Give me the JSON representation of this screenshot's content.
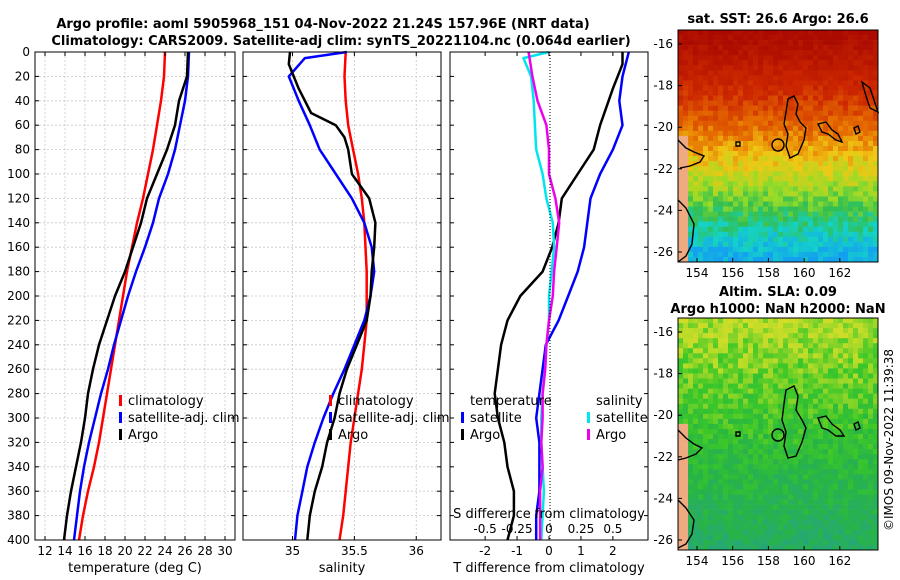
{
  "titles": {
    "line1": "Argo profile: aoml 5905968_151 04-Nov-2022 21.24S 157.96E (NRT data)",
    "line2": "Climatology: CARS2009. Satellite-adj clim: synTS_20221104.nc (0.064d earlier)"
  },
  "watermark": "©IMOS 09-Nov-2022 11:39:38",
  "depth_ticks": [
    0,
    20,
    40,
    60,
    80,
    100,
    120,
    140,
    160,
    180,
    200,
    220,
    240,
    260,
    280,
    300,
    320,
    340,
    360,
    380,
    400
  ],
  "chart_data": [
    {
      "id": "temperature",
      "type": "line",
      "xlabel": "temperature (deg C)",
      "xlim": [
        11,
        31
      ],
      "ylim": [
        0,
        400
      ],
      "xticks": [
        "12",
        "14",
        "16",
        "18",
        "20",
        "22",
        "24",
        "26",
        "28",
        "30"
      ],
      "xtick_values": [
        12,
        14,
        16,
        18,
        20,
        22,
        24,
        26,
        28,
        30
      ],
      "legend": [
        "climatology",
        "satellite-adj. clim",
        "Argo"
      ],
      "series": [
        {
          "name": "climatology",
          "color": "#ff0000",
          "points": [
            [
              24.0,
              0
            ],
            [
              23.9,
              20
            ],
            [
              23.6,
              40
            ],
            [
              23.2,
              60
            ],
            [
              22.8,
              80
            ],
            [
              22.3,
              100
            ],
            [
              21.8,
              120
            ],
            [
              21.2,
              140
            ],
            [
              20.7,
              160
            ],
            [
              20.2,
              180
            ],
            [
              19.8,
              200
            ],
            [
              19.4,
              220
            ],
            [
              19.0,
              240
            ],
            [
              18.6,
              260
            ],
            [
              18.2,
              280
            ],
            [
              17.8,
              300
            ],
            [
              17.4,
              320
            ],
            [
              16.9,
              340
            ],
            [
              16.3,
              360
            ],
            [
              15.8,
              380
            ],
            [
              15.4,
              400
            ]
          ]
        },
        {
          "name": "satellite-adj. clim",
          "color": "#0000ff",
          "points": [
            [
              26.4,
              0
            ],
            [
              26.3,
              20
            ],
            [
              26.0,
              40
            ],
            [
              25.5,
              60
            ],
            [
              25.0,
              80
            ],
            [
              24.3,
              100
            ],
            [
              23.4,
              120
            ],
            [
              22.8,
              140
            ],
            [
              22.0,
              160
            ],
            [
              21.1,
              180
            ],
            [
              20.3,
              200
            ],
            [
              19.6,
              220
            ],
            [
              18.9,
              240
            ],
            [
              18.3,
              260
            ],
            [
              17.6,
              280
            ],
            [
              17.0,
              300
            ],
            [
              16.4,
              320
            ],
            [
              15.9,
              340
            ],
            [
              15.5,
              360
            ],
            [
              15.2,
              380
            ],
            [
              14.9,
              400
            ]
          ]
        },
        {
          "name": "Argo",
          "color": "#000000",
          "points": [
            [
              26.3,
              0
            ],
            [
              26.2,
              20
            ],
            [
              25.4,
              40
            ],
            [
              25.0,
              60
            ],
            [
              24.2,
              80
            ],
            [
              23.2,
              100
            ],
            [
              22.2,
              120
            ],
            [
              21.6,
              140
            ],
            [
              20.8,
              160
            ],
            [
              20.0,
              180
            ],
            [
              19.0,
              200
            ],
            [
              18.2,
              220
            ],
            [
              17.4,
              240
            ],
            [
              16.8,
              260
            ],
            [
              16.3,
              280
            ],
            [
              16.0,
              300
            ],
            [
              15.6,
              320
            ],
            [
              15.1,
              340
            ],
            [
              14.6,
              360
            ],
            [
              14.2,
              380
            ],
            [
              13.9,
              400
            ]
          ]
        }
      ]
    },
    {
      "id": "salinity",
      "type": "line",
      "xlabel": "salinity",
      "xlim": [
        34.6,
        36.2
      ],
      "ylim": [
        0,
        400
      ],
      "xticks": [
        "35",
        "35.5",
        "36"
      ],
      "xtick_values": [
        35,
        35.5,
        36
      ],
      "legend": [
        "climatology",
        "satellite-adj. clim",
        "Argo"
      ],
      "series": [
        {
          "name": "climatology",
          "color": "#ff0000",
          "points": [
            [
              35.43,
              0
            ],
            [
              35.42,
              20
            ],
            [
              35.43,
              40
            ],
            [
              35.45,
              60
            ],
            [
              35.49,
              80
            ],
            [
              35.53,
              100
            ],
            [
              35.56,
              120
            ],
            [
              35.58,
              140
            ],
            [
              35.59,
              160
            ],
            [
              35.6,
              180
            ],
            [
              35.6,
              200
            ],
            [
              35.6,
              220
            ],
            [
              35.58,
              240
            ],
            [
              35.56,
              260
            ],
            [
              35.53,
              280
            ],
            [
              35.5,
              300
            ],
            [
              35.47,
              320
            ],
            [
              35.45,
              340
            ],
            [
              35.43,
              360
            ],
            [
              35.41,
              380
            ],
            [
              35.38,
              400
            ]
          ]
        },
        {
          "name": "satellite-adj. clim",
          "color": "#0000ff",
          "points": [
            [
              35.44,
              0
            ],
            [
              35.1,
              5
            ],
            [
              34.97,
              20
            ],
            [
              35.05,
              40
            ],
            [
              35.14,
              60
            ],
            [
              35.22,
              80
            ],
            [
              35.35,
              100
            ],
            [
              35.48,
              120
            ],
            [
              35.58,
              140
            ],
            [
              35.64,
              160
            ],
            [
              35.66,
              180
            ],
            [
              35.63,
              200
            ],
            [
              35.58,
              220
            ],
            [
              35.5,
              240
            ],
            [
              35.42,
              260
            ],
            [
              35.33,
              280
            ],
            [
              35.25,
              300
            ],
            [
              35.18,
              320
            ],
            [
              35.12,
              340
            ],
            [
              35.08,
              360
            ],
            [
              35.04,
              380
            ],
            [
              35.02,
              400
            ]
          ]
        },
        {
          "name": "Argo",
          "color": "#000000",
          "points": [
            [
              34.98,
              0
            ],
            [
              34.97,
              10
            ],
            [
              35.05,
              30
            ],
            [
              35.15,
              50
            ],
            [
              35.35,
              60
            ],
            [
              35.42,
              70
            ],
            [
              35.45,
              80
            ],
            [
              35.48,
              100
            ],
            [
              35.62,
              120
            ],
            [
              35.67,
              140
            ],
            [
              35.66,
              160
            ],
            [
              35.64,
              180
            ],
            [
              35.63,
              200
            ],
            [
              35.6,
              220
            ],
            [
              35.52,
              240
            ],
            [
              35.44,
              260
            ],
            [
              35.38,
              280
            ],
            [
              35.34,
              300
            ],
            [
              35.28,
              320
            ],
            [
              35.24,
              340
            ],
            [
              35.18,
              360
            ],
            [
              35.14,
              380
            ],
            [
              35.12,
              400
            ]
          ]
        }
      ]
    },
    {
      "id": "difference",
      "type": "line",
      "xlabel": "T difference from climatology",
      "top_xlabel": "S difference from climatology",
      "xlim": [
        -3.1,
        3.1
      ],
      "s_xlim": [
        -0.775,
        0.775
      ],
      "ylim": [
        0,
        400
      ],
      "xticks": [
        "-2",
        "-1",
        "0",
        "1",
        "2"
      ],
      "xtick_values": [
        -2,
        -1,
        0,
        1,
        2
      ],
      "s_xticks": [
        "-0.5",
        "-0.25",
        "0",
        "0.25",
        "0.5"
      ],
      "s_xtick_values": [
        -0.5,
        -0.25,
        0,
        0.25,
        0.5
      ],
      "legend_temperature_title": "temperature",
      "legend_salinity_title": "salinity",
      "legend_temperature": [
        "satellite",
        "Argo"
      ],
      "legend_salinity": [
        "satellite",
        "Argo"
      ],
      "series": [
        {
          "name": "T satellite",
          "axis": "T",
          "color": "#0000ff",
          "points": [
            [
              2.5,
              0
            ],
            [
              2.3,
              20
            ],
            [
              2.2,
              40
            ],
            [
              2.3,
              60
            ],
            [
              2.0,
              80
            ],
            [
              1.6,
              100
            ],
            [
              1.3,
              120
            ],
            [
              1.2,
              140
            ],
            [
              1.1,
              160
            ],
            [
              0.9,
              180
            ],
            [
              0.6,
              200
            ],
            [
              0.3,
              220
            ],
            [
              -0.1,
              240
            ],
            [
              -0.2,
              260
            ],
            [
              -0.3,
              280
            ],
            [
              -0.4,
              300
            ],
            [
              -0.3,
              320
            ],
            [
              -0.3,
              340
            ],
            [
              -0.3,
              360
            ],
            [
              -0.4,
              380
            ],
            [
              -0.4,
              400
            ]
          ]
        },
        {
          "name": "T Argo",
          "axis": "T",
          "color": "#000000",
          "points": [
            [
              2.3,
              0
            ],
            [
              2.3,
              10
            ],
            [
              2.0,
              30
            ],
            [
              1.6,
              60
            ],
            [
              1.4,
              80
            ],
            [
              0.9,
              100
            ],
            [
              0.4,
              120
            ],
            [
              0.3,
              140
            ],
            [
              0.1,
              160
            ],
            [
              -0.2,
              180
            ],
            [
              -0.9,
              200
            ],
            [
              -1.3,
              220
            ],
            [
              -1.5,
              240
            ],
            [
              -1.6,
              260
            ],
            [
              -1.7,
              280
            ],
            [
              -1.6,
              300
            ],
            [
              -1.4,
              320
            ],
            [
              -1.3,
              340
            ],
            [
              -1.1,
              360
            ],
            [
              -1.1,
              380
            ],
            [
              -1.3,
              400
            ]
          ]
        },
        {
          "name": "S satellite",
          "axis": "S",
          "color": "#00e5ee",
          "points": [
            [
              0.0,
              0
            ],
            [
              -0.2,
              5
            ],
            [
              -0.14,
              20
            ],
            [
              -0.12,
              40
            ],
            [
              -0.11,
              60
            ],
            [
              -0.1,
              80
            ],
            [
              -0.05,
              100
            ],
            [
              -0.02,
              120
            ],
            [
              0.03,
              140
            ],
            [
              0.04,
              160
            ],
            [
              0.02,
              180
            ],
            [
              0.0,
              200
            ],
            [
              0.0,
              220
            ],
            [
              -0.02,
              240
            ],
            [
              -0.03,
              260
            ],
            [
              -0.05,
              280
            ],
            [
              -0.06,
              300
            ],
            [
              -0.06,
              320
            ],
            [
              -0.05,
              340
            ],
            [
              -0.04,
              360
            ],
            [
              -0.05,
              380
            ],
            [
              -0.06,
              400
            ]
          ]
        },
        {
          "name": "S Argo",
          "axis": "S",
          "color": "#ee00ee",
          "points": [
            [
              -0.16,
              0
            ],
            [
              -0.13,
              20
            ],
            [
              -0.09,
              40
            ],
            [
              -0.02,
              60
            ],
            [
              0.0,
              80
            ],
            [
              0.0,
              100
            ],
            [
              0.05,
              120
            ],
            [
              0.08,
              140
            ],
            [
              0.06,
              160
            ],
            [
              0.04,
              180
            ],
            [
              0.03,
              200
            ],
            [
              0.0,
              220
            ],
            [
              -0.02,
              240
            ],
            [
              -0.03,
              260
            ],
            [
              -0.05,
              280
            ],
            [
              -0.05,
              300
            ],
            [
              -0.06,
              320
            ],
            [
              -0.05,
              340
            ],
            [
              -0.07,
              360
            ],
            [
              -0.07,
              380
            ],
            [
              -0.07,
              400
            ]
          ]
        }
      ]
    }
  ],
  "maps": [
    {
      "id": "sst-map",
      "title": "sat. SST: 26.6 Argo: 26.6",
      "lon_ticks": [
        "154",
        "156",
        "158",
        "160",
        "162"
      ],
      "lat_ticks": [
        "-16",
        "-18",
        "-20",
        "-22",
        "-24",
        "-26"
      ]
    },
    {
      "id": "sla-map",
      "title_line1": "Altim. SLA: 0.09",
      "title_line2": "Argo h1000: NaN h2000: NaN",
      "lon_ticks": [
        "154",
        "156",
        "158",
        "160",
        "162"
      ],
      "lat_ticks": [
        "-16",
        "-18",
        "-20",
        "-22",
        "-24",
        "-26"
      ]
    }
  ]
}
